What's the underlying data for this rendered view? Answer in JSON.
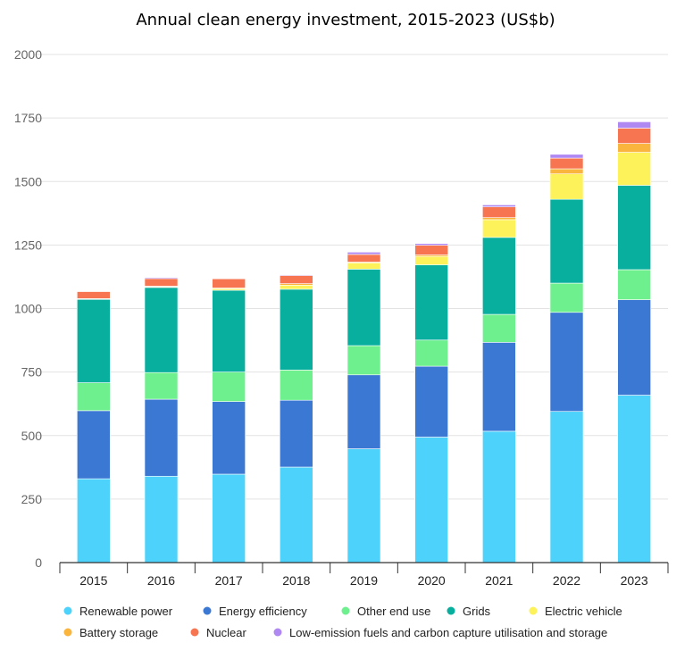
{
  "chart_data": {
    "type": "bar",
    "stacked": true,
    "title": "Annual clean energy investment, 2015-2023 (US$b)",
    "categories": [
      "2015",
      "2016",
      "2017",
      "2018",
      "2019",
      "2020",
      "2021",
      "2022",
      "2023"
    ],
    "ylim": [
      0,
      2000
    ],
    "yticks": [
      0,
      250,
      500,
      750,
      1000,
      1250,
      1500,
      1750,
      2000
    ],
    "grid": true,
    "legend_position": "bottom",
    "series": [
      {
        "name": "Renewable power",
        "color": "#4dd2fb",
        "values": [
          330,
          340,
          348,
          376,
          448,
          494,
          517,
          595,
          659
        ]
      },
      {
        "name": "Energy efficiency",
        "color": "#3b78d4",
        "values": [
          268,
          303,
          286,
          263,
          291,
          279,
          350,
          390,
          376
        ]
      },
      {
        "name": "Other end use",
        "color": "#6ef08f",
        "values": [
          110,
          105,
          116,
          119,
          115,
          103,
          110,
          115,
          118
        ]
      },
      {
        "name": "Grids",
        "color": "#08ae9e",
        "values": [
          328,
          335,
          322,
          318,
          301,
          296,
          303,
          330,
          332
        ]
      },
      {
        "name": "Electric vehicle",
        "color": "#fdf25a",
        "values": [
          2,
          3,
          6,
          16,
          25,
          33,
          70,
          100,
          130
        ]
      },
      {
        "name": "Battery storage",
        "color": "#f9b53d",
        "values": [
          1,
          2,
          3,
          6,
          3,
          6,
          8,
          20,
          35
        ]
      },
      {
        "name": "Nuclear",
        "color": "#f77550",
        "values": [
          28,
          30,
          36,
          32,
          30,
          38,
          42,
          42,
          60
        ]
      },
      {
        "name": "Low-emission fuels and carbon capture utilisation and storage",
        "color": "#b088f2",
        "values": [
          2,
          4,
          1,
          3,
          9,
          7,
          8,
          15,
          25
        ]
      }
    ]
  }
}
